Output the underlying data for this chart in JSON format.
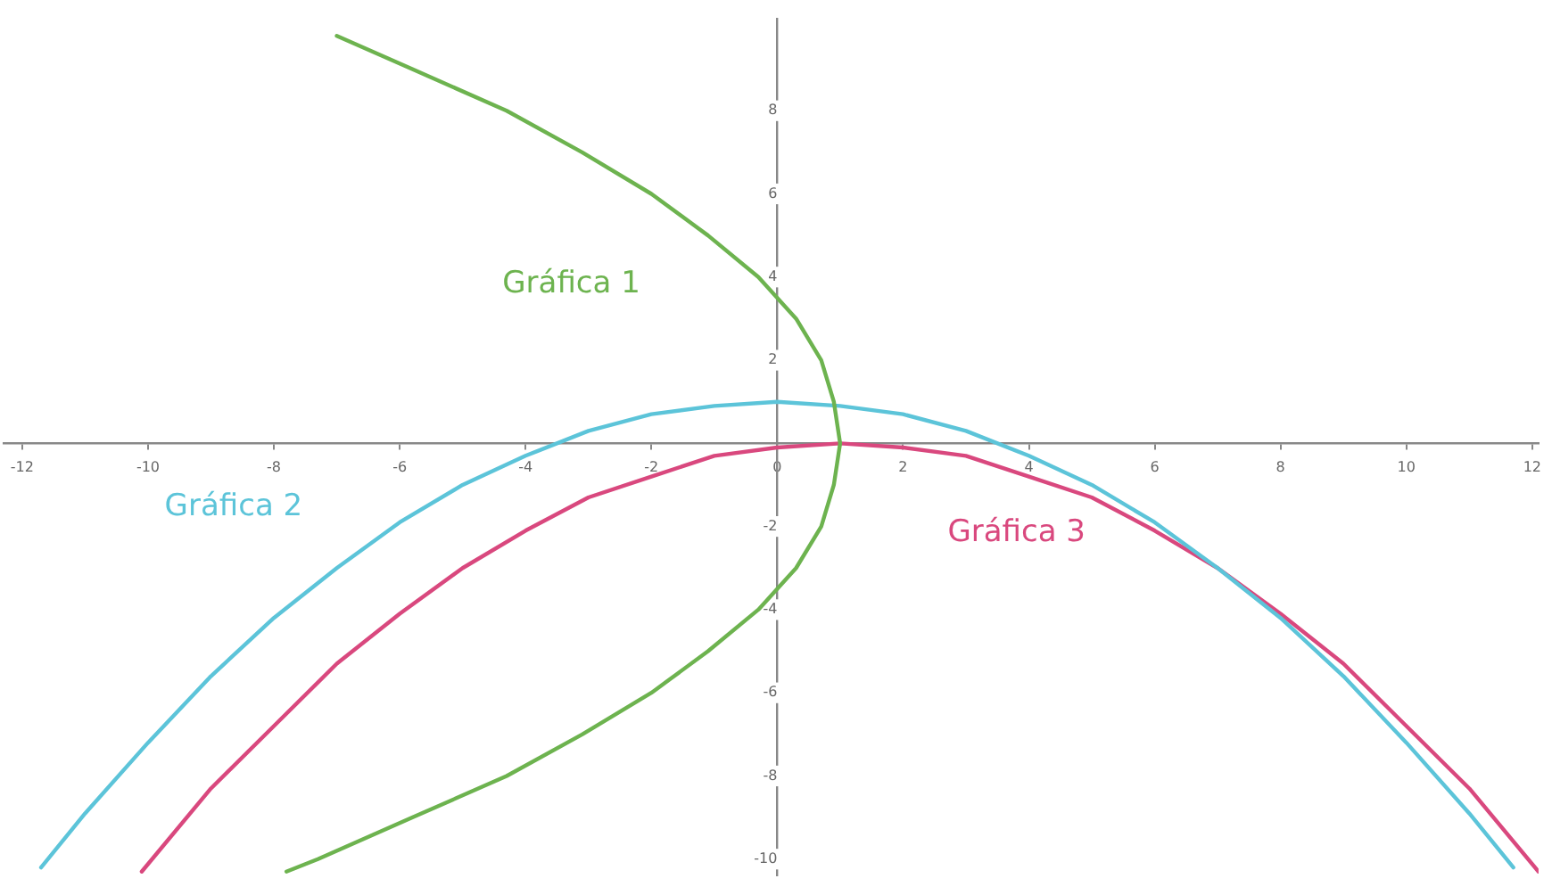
{
  "chart_data": {
    "type": "line",
    "xlim": [
      -12.3,
      12.1
    ],
    "ylim": [
      -10.4,
      10.2
    ],
    "xticks": [
      -12,
      -10,
      -8,
      -6,
      -4,
      -2,
      0,
      2,
      4,
      6,
      8,
      10,
      12
    ],
    "yticks": [
      -10,
      -8,
      -6,
      -4,
      -2,
      2,
      4,
      6,
      8
    ],
    "grid": false,
    "legend": false,
    "marker": "none",
    "line_style": "solid",
    "series": [
      {
        "name": "Gráfica 1",
        "color": "#6db34f",
        "x": [
          -7.0,
          -5.8,
          -4.3,
          -3.1,
          -2,
          -1.1,
          -0.3,
          0.3,
          0.7,
          0.9,
          1,
          0.9,
          0.7,
          0.3,
          -0.3,
          -1.1,
          -2,
          -3.1,
          -4.3,
          -5.8,
          -7.3,
          -7.8
        ],
        "values": [
          9.8,
          9,
          8,
          7,
          6,
          5,
          4,
          3,
          2,
          1,
          0,
          -1,
          -2,
          -3,
          -4,
          -5,
          -6,
          -7,
          -8,
          -9,
          -10,
          -10.3
        ]
      },
      {
        "name": "Gráfica 2",
        "color": "#5cc4d9",
        "x": [
          -11.7,
          -11,
          -10,
          -9,
          -8,
          -7,
          -6,
          -5,
          -4,
          -3,
          -2,
          -1,
          0,
          1,
          2,
          3,
          4,
          5,
          6,
          7,
          8,
          9,
          10,
          11,
          11.7
        ],
        "values": [
          -10.2,
          -8.9,
          -7.2,
          -5.6,
          -4.2,
          -3,
          -1.9,
          -1,
          -0.3,
          0.3,
          0.7,
          0.9,
          1,
          0.9,
          0.7,
          0.3,
          -0.3,
          -1,
          -1.9,
          -3,
          -4.2,
          -5.6,
          -7.2,
          -8.9,
          -10.2
        ]
      },
      {
        "name": "Gráfica 3",
        "color": "#d9487e",
        "x": [
          -10.1,
          -9,
          -8,
          -7,
          -6,
          -5,
          -4,
          -3,
          -2,
          -1,
          0,
          1,
          2,
          3,
          4,
          5,
          6,
          7,
          8,
          9,
          10,
          11,
          12.1
        ],
        "values": [
          -10.3,
          -8.3,
          -6.8,
          -5.3,
          -4.1,
          -3,
          -2.1,
          -1.3,
          -0.8,
          -0.3,
          -0.1,
          0,
          -0.1,
          -0.3,
          -0.8,
          -1.3,
          -2.1,
          -3,
          -4.1,
          -5.3,
          -6.8,
          -8.3,
          -10.3
        ]
      }
    ]
  }
}
